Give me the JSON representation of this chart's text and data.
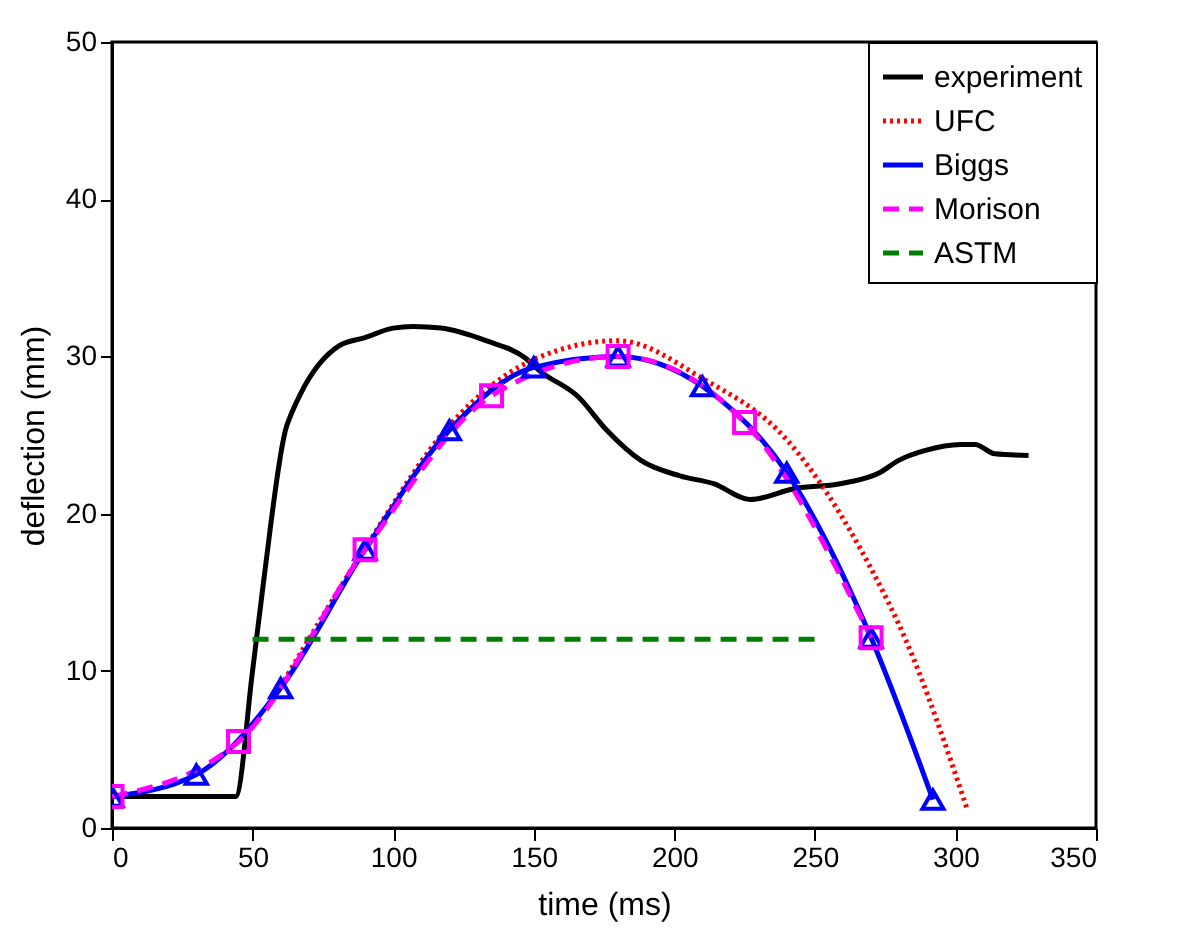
{
  "chart_data": {
    "type": "line",
    "xlabel": "time (ms)",
    "ylabel": "deflection (mm)",
    "xlim": [
      0,
      350
    ],
    "ylim": [
      0,
      50
    ],
    "xticks": [
      0,
      50,
      100,
      150,
      200,
      250,
      300,
      350
    ],
    "yticks": [
      0,
      10,
      20,
      30,
      40,
      50
    ],
    "grid": false,
    "legend": "top right",
    "series": [
      {
        "name": "experiment",
        "color": "#000000",
        "line_style": "solid",
        "marker": "none",
        "x": [
          0,
          44,
          50,
          54,
          62,
          63,
          67,
          81,
          90,
          100,
          107,
          117,
          133,
          147,
          152,
          166,
          176,
          188,
          202,
          214,
          227,
          243,
          259,
          273,
          280,
          289,
          302,
          307,
          314,
          326
        ],
        "values": [
          2,
          2,
          10,
          15.8,
          25.5,
          26,
          27.6,
          30.7,
          31.2,
          31.8,
          31.9,
          31.8,
          31,
          29.9,
          29.1,
          27.4,
          25.3,
          23.4,
          22.4,
          21.9,
          20.9,
          21.6,
          21.9,
          22.6,
          23.4,
          24,
          24.4,
          24.4,
          23.8,
          23.7
        ]
      },
      {
        "name": "UFC",
        "color": "#ff0000",
        "line_style": "dotted",
        "marker": "none",
        "x": [
          60,
          90,
          120,
          150,
          180,
          210,
          240,
          270,
          282,
          304
        ],
        "values": [
          9,
          17.8,
          25.6,
          29.8,
          31,
          28.6,
          24.7,
          16.5,
          12.1,
          1.3
        ]
      },
      {
        "name": "Biggs",
        "color": "#0000ff",
        "line_style": "solid",
        "marker": "triangle",
        "x": [
          0,
          30,
          60,
          90,
          120,
          150,
          180,
          210,
          240,
          270,
          292
        ],
        "values": [
          2,
          3.4,
          8.9,
          17.7,
          25.3,
          29.3,
          30,
          28.1,
          22.6,
          12.1,
          1.8
        ]
      },
      {
        "name": "Morison",
        "color": "#ff00ff",
        "line_style": "dashed",
        "marker": "square",
        "x": [
          0,
          45,
          90,
          135,
          180,
          225,
          270
        ],
        "values": [
          2,
          5.5,
          17.7,
          27.5,
          30,
          25.8,
          12.1
        ]
      },
      {
        "name": "ASTM",
        "color": "#008000",
        "line_style": "dashed",
        "marker": "none",
        "x": [
          50,
          250
        ],
        "values": [
          12,
          12
        ]
      }
    ]
  }
}
